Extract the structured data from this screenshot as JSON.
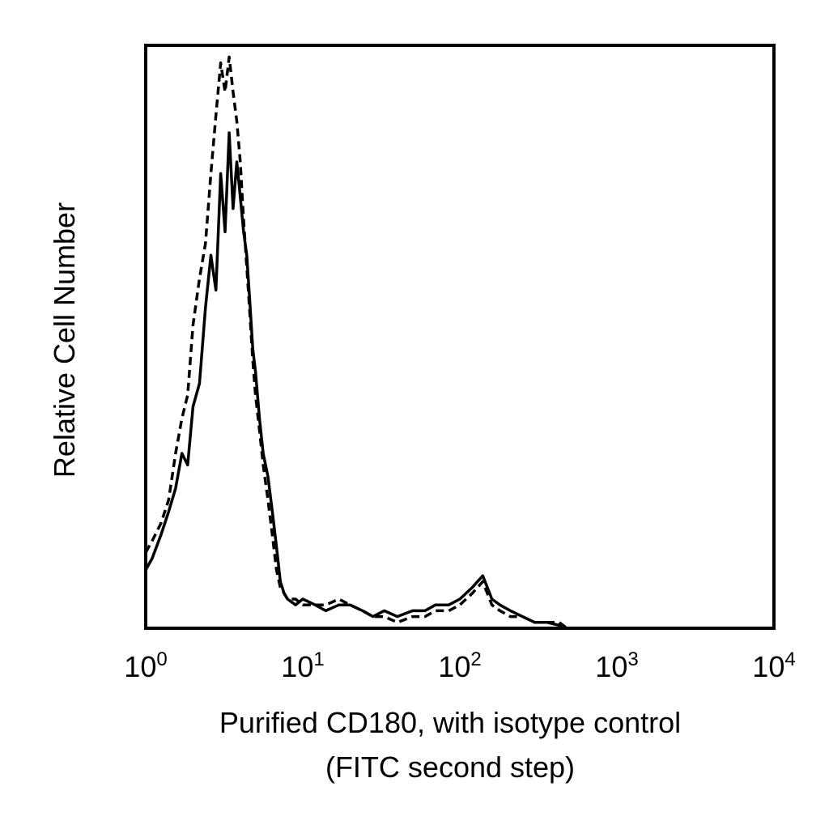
{
  "chart_data": {
    "type": "line",
    "title": "",
    "xlabel": "Purified CD180, with isotype control",
    "xlabel_line2": "(FITC second step)",
    "ylabel": "Relative Cell Number",
    "xscale": "log",
    "xlim": [
      1,
      10000
    ],
    "ylim": [
      0,
      100
    ],
    "grid": false,
    "x_ticks": [
      {
        "base": "10",
        "exp": "0"
      },
      {
        "base": "10",
        "exp": "1"
      },
      {
        "base": "10",
        "exp": "2"
      },
      {
        "base": "10",
        "exp": "3"
      },
      {
        "base": "10",
        "exp": "4"
      }
    ],
    "series": [
      {
        "style": "solid",
        "color": "#000000",
        "x": [
          1.0,
          1.1,
          1.25,
          1.4,
          1.55,
          1.7,
          1.85,
          2.0,
          2.2,
          2.4,
          2.6,
          2.8,
          3.0,
          3.2,
          3.4,
          3.6,
          3.8,
          4.0,
          4.2,
          4.4,
          4.6,
          4.8,
          5.0,
          5.3,
          5.6,
          6.0,
          6.4,
          6.8,
          7.2,
          7.6,
          8.0,
          9.0,
          10.0,
          12.0,
          14.0,
          17.0,
          20.0,
          24.0,
          28.0,
          33.0,
          40.0,
          50.0,
          60.0,
          70.0,
          85.0,
          100.0,
          120.0,
          140.0,
          160.0,
          180.0,
          210.0,
          250.0,
          300.0,
          360.0,
          430.0,
          480.0
        ],
        "values": [
          10,
          12,
          16,
          20,
          24,
          30,
          28,
          38,
          42,
          55,
          64,
          58,
          78,
          68,
          85,
          72,
          80,
          74,
          68,
          64,
          56,
          48,
          44,
          36,
          30,
          26,
          20,
          14,
          8,
          6,
          5,
          4,
          5,
          4,
          3,
          4,
          4,
          3,
          2,
          3,
          2,
          3,
          3,
          4,
          4,
          5,
          7,
          9,
          5,
          4,
          3,
          2,
          1,
          1,
          0.5,
          0
        ]
      },
      {
        "style": "dashed",
        "color": "#000000",
        "x": [
          1.0,
          1.1,
          1.25,
          1.4,
          1.55,
          1.7,
          1.85,
          2.0,
          2.2,
          2.4,
          2.6,
          2.8,
          3.0,
          3.2,
          3.4,
          3.6,
          3.8,
          4.0,
          4.2,
          4.4,
          4.6,
          4.8,
          5.0,
          5.3,
          5.6,
          6.0,
          6.4,
          6.8,
          7.2,
          7.6,
          8.0,
          9.0,
          10.0,
          12.0,
          14.0,
          17.0,
          20.0,
          24.0,
          28.0,
          33.0,
          40.0,
          50.0,
          60.0,
          70.0,
          85.0,
          100.0,
          120.0,
          140.0,
          160.0,
          180.0,
          210.0,
          250.0,
          300.0,
          360.0,
          430.0,
          480.0
        ],
        "values": [
          13,
          15,
          18,
          22,
          30,
          36,
          40,
          52,
          60,
          66,
          78,
          88,
          97,
          92,
          98,
          92,
          87,
          80,
          70,
          62,
          54,
          46,
          40,
          34,
          28,
          22,
          16,
          10,
          7,
          6,
          5,
          5,
          4,
          4,
          4,
          5,
          4,
          3,
          2,
          2,
          1,
          2,
          2,
          3,
          3,
          4,
          6,
          8,
          4,
          3,
          2,
          2,
          1,
          1,
          1,
          0
        ]
      }
    ]
  }
}
